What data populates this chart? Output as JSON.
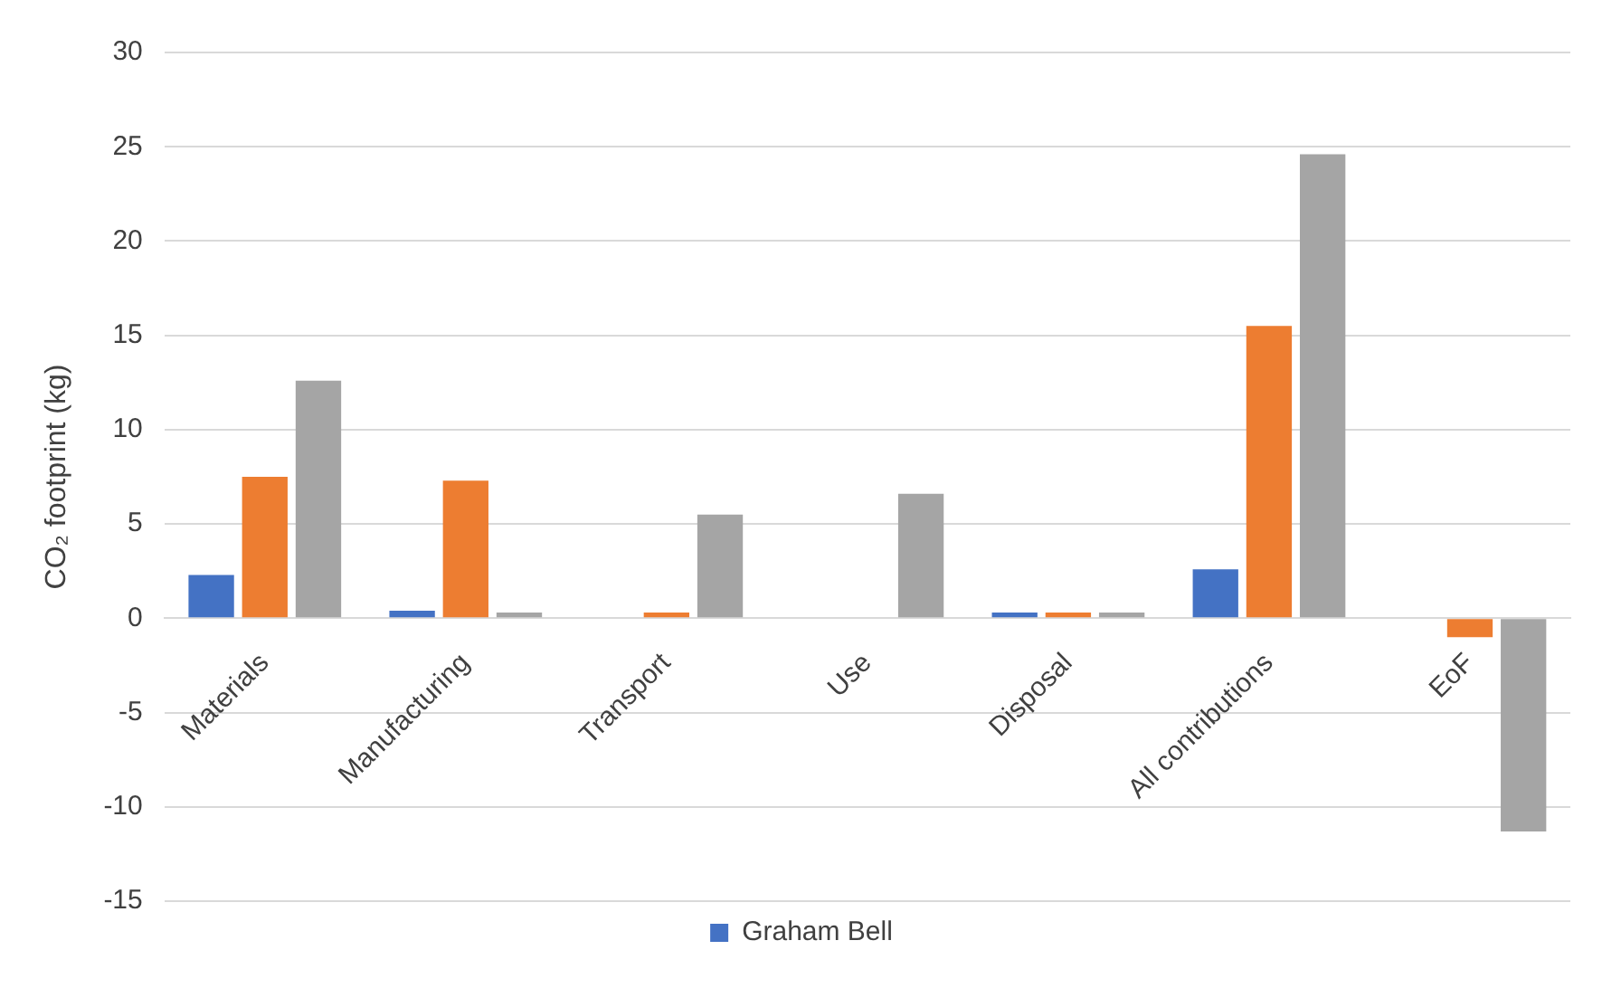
{
  "chart_data": {
    "type": "bar",
    "ylabel": "CO₂ footprint (kg)",
    "categories": [
      "Materials",
      "Manufacturing",
      "Transport",
      "Use",
      "Disposal",
      "All contributions",
      "EoF"
    ],
    "series": [
      {
        "name": "Graham Bell",
        "color": "#4472c4",
        "values": [
          2.3,
          0.4,
          0,
          0,
          0.3,
          2.6,
          0
        ]
      },
      {
        "color": "#ed7d31",
        "values": [
          7.5,
          7.3,
          0.3,
          0,
          0.3,
          15.5,
          -1.0
        ]
      },
      {
        "color": "#a5a5a5",
        "values": [
          12.6,
          0.3,
          5.5,
          6.6,
          0.3,
          24.6,
          -11.3
        ]
      }
    ],
    "ylim": [
      -15,
      30
    ],
    "yticks": [
      -15,
      -10,
      -5,
      0,
      5,
      10,
      15,
      20,
      25,
      30
    ],
    "grid": "y",
    "legend": "bottom"
  }
}
